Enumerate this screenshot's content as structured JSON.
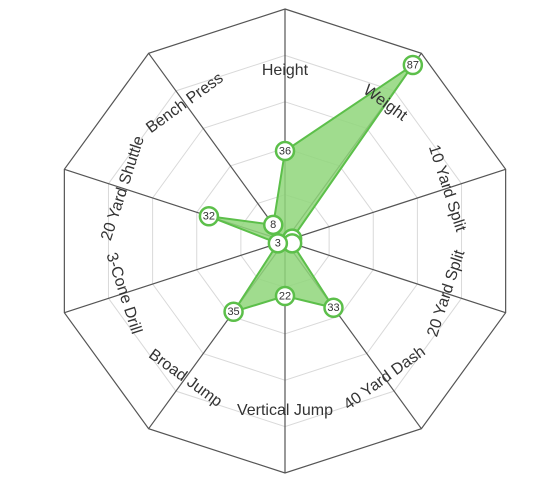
{
  "chart_data": {
    "type": "radar",
    "title": "",
    "axes": [
      "Height",
      "Weight",
      "10 Yard Split",
      "20 Yard Split",
      "40 Yard Dash",
      "Vertical Jump",
      "Broad Jump",
      "3-Cone Drill",
      "20 Yard Shuttle",
      "Bench Press"
    ],
    "series": [
      {
        "values": [
          36,
          87,
          3,
          3,
          33,
          22,
          35,
          3,
          32,
          8
        ]
      }
    ],
    "value_labels": [
      "36",
      "87",
      "",
      "",
      "33",
      "22",
      "35",
      "3",
      "32",
      "8"
    ],
    "range": [
      0,
      100
    ],
    "rings": 5,
    "grid": true,
    "colors": {
      "series": "#5cbf4a",
      "fill": "#8fd67a",
      "grid": "#d9d9d9",
      "frame": "#555555"
    }
  }
}
